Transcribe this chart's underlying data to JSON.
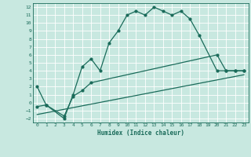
{
  "title": "",
  "xlabel": "Humidex (Indice chaleur)",
  "bg_color": "#c8e8e0",
  "grid_color": "#ffffff",
  "line_color": "#1a6b5a",
  "xlim": [
    -0.5,
    23.5
  ],
  "ylim": [
    -2.5,
    12.5
  ],
  "xticks": [
    0,
    1,
    2,
    3,
    4,
    5,
    6,
    7,
    8,
    9,
    10,
    11,
    12,
    13,
    14,
    15,
    16,
    17,
    18,
    19,
    20,
    21,
    22,
    23
  ],
  "yticks": [
    -2,
    -1,
    0,
    1,
    2,
    3,
    4,
    5,
    6,
    7,
    8,
    9,
    10,
    11,
    12
  ],
  "line1_x": [
    0,
    1,
    3,
    4,
    5,
    6,
    7,
    8,
    9,
    10,
    11,
    12,
    13,
    14,
    15,
    16,
    17,
    18,
    20,
    21,
    22,
    23
  ],
  "line1_y": [
    2,
    -0.3,
    -2,
    1,
    4.5,
    5.5,
    4,
    7.5,
    9,
    11,
    11.5,
    11,
    12,
    11.5,
    11,
    11.5,
    10.5,
    8.5,
    4,
    4,
    4,
    4
  ],
  "line2_x": [
    0,
    1,
    3,
    4,
    5,
    6,
    20,
    21,
    22,
    23
  ],
  "line2_y": [
    -0.5,
    -0.3,
    -1.7,
    0.8,
    1.5,
    2.5,
    6,
    4,
    4,
    4
  ],
  "line3_x": [
    0,
    23
  ],
  "line3_y": [
    -1.5,
    3.5
  ],
  "marker_size": 2,
  "line_width": 0.9
}
